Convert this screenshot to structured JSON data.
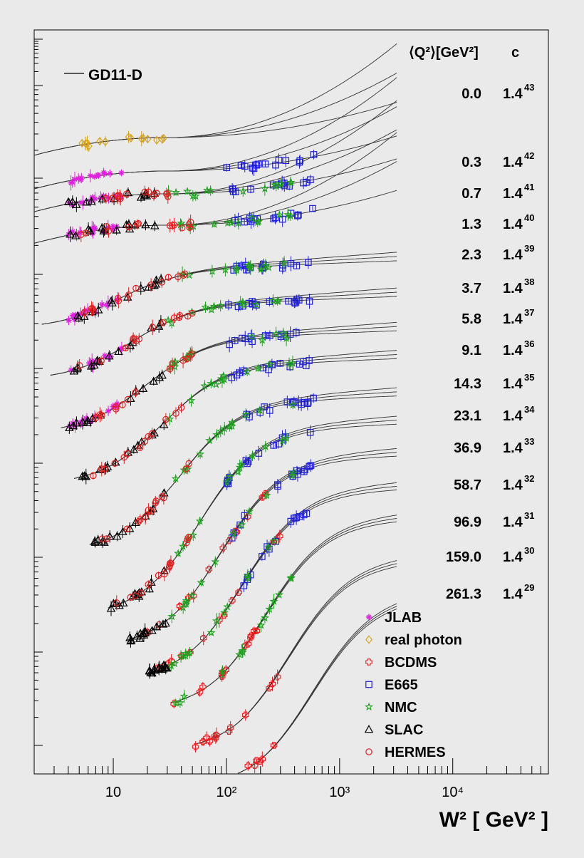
{
  "chart_data": {
    "type": "scatter",
    "title": "",
    "xlabel": "W² [ GeV² ]",
    "ylabel": "",
    "xscale": "log",
    "x_tick_labels": [
      "10",
      "10²",
      "10³",
      "10⁴"
    ],
    "x_ticks": [
      10,
      100,
      1000,
      10000
    ],
    "xlim": [
      2,
      70000
    ],
    "yscale": "log",
    "y_tick_labels_shown": false,
    "grid": false,
    "model_curve_label": "GD11-D",
    "table_header": {
      "q2": "⟨Q²⟩[GeV²]",
      "c": "c"
    },
    "bins": [
      {
        "q2": "0.0",
        "c_base": "1.4",
        "c_exp": "43"
      },
      {
        "q2": "0.3",
        "c_base": "1.4",
        "c_exp": "42"
      },
      {
        "q2": "0.7",
        "c_base": "1.4",
        "c_exp": "41"
      },
      {
        "q2": "1.3",
        "c_base": "1.4",
        "c_exp": "40"
      },
      {
        "q2": "2.3",
        "c_base": "1.4",
        "c_exp": "39"
      },
      {
        "q2": "3.7",
        "c_base": "1.4",
        "c_exp": "38"
      },
      {
        "q2": "5.8",
        "c_base": "1.4",
        "c_exp": "37"
      },
      {
        "q2": "9.1",
        "c_base": "1.4",
        "c_exp": "36"
      },
      {
        "q2": "14.3",
        "c_base": "1.4",
        "c_exp": "35"
      },
      {
        "q2": "23.1",
        "c_base": "1.4",
        "c_exp": "34"
      },
      {
        "q2": "36.9",
        "c_base": "1.4",
        "c_exp": "33"
      },
      {
        "q2": "58.7",
        "c_base": "1.4",
        "c_exp": "32"
      },
      {
        "q2": "96.9",
        "c_base": "1.4",
        "c_exp": "31"
      },
      {
        "q2": "159.0",
        "c_base": "1.4",
        "c_exp": "30"
      },
      {
        "q2": "261.3",
        "c_base": "1.4",
        "c_exp": "29"
      }
    ],
    "series": [
      {
        "name": "JLAB",
        "marker": "asterisk",
        "color": "#e020e0",
        "bins": [
          "0.3",
          "0.7",
          "1.3",
          "2.3",
          "3.7",
          "5.8"
        ],
        "w2_range": [
          4,
          12
        ]
      },
      {
        "name": "real photon",
        "marker": "diamond",
        "color": "#d4a017",
        "bins": [
          "0.0"
        ],
        "w2_range": [
          4.5,
          30
        ]
      },
      {
        "name": "BCDMS",
        "marker": "cross",
        "color": "#e02020",
        "bins": [
          "36.9",
          "58.7",
          "96.9",
          "159.0",
          "261.3"
        ],
        "w2_range": [
          20,
          300
        ]
      },
      {
        "name": "E665",
        "marker": "square",
        "color": "#2020d0",
        "bins": [
          "0.3",
          "0.7",
          "1.3",
          "2.3",
          "3.7",
          "5.8",
          "9.1",
          "14.3",
          "23.1",
          "36.9",
          "58.7"
        ],
        "w2_range": [
          100,
          600
        ]
      },
      {
        "name": "NMC",
        "marker": "star",
        "color": "#20a020",
        "bins": [
          "0.7",
          "1.3",
          "2.3",
          "3.7",
          "5.8",
          "9.1",
          "14.3",
          "23.1",
          "36.9",
          "58.7",
          "96.9"
        ],
        "w2_range": [
          30,
          400
        ]
      },
      {
        "name": "SLAC",
        "marker": "triangle",
        "color": "#000000",
        "bins": [
          "0.7",
          "1.3",
          "2.3",
          "3.7",
          "5.8",
          "9.1",
          "14.3",
          "23.1",
          "36.9",
          "58.7"
        ],
        "w2_range": [
          4,
          30
        ]
      },
      {
        "name": "HERMES",
        "marker": "circle",
        "color": "#e02020",
        "bins": [
          "0.7",
          "1.3",
          "2.3",
          "3.7",
          "5.8",
          "9.1",
          "14.3",
          "23.1"
        ],
        "w2_range": [
          5,
          50
        ]
      }
    ],
    "legend_position": "bottom-right",
    "model_legend_position": "top-left"
  }
}
